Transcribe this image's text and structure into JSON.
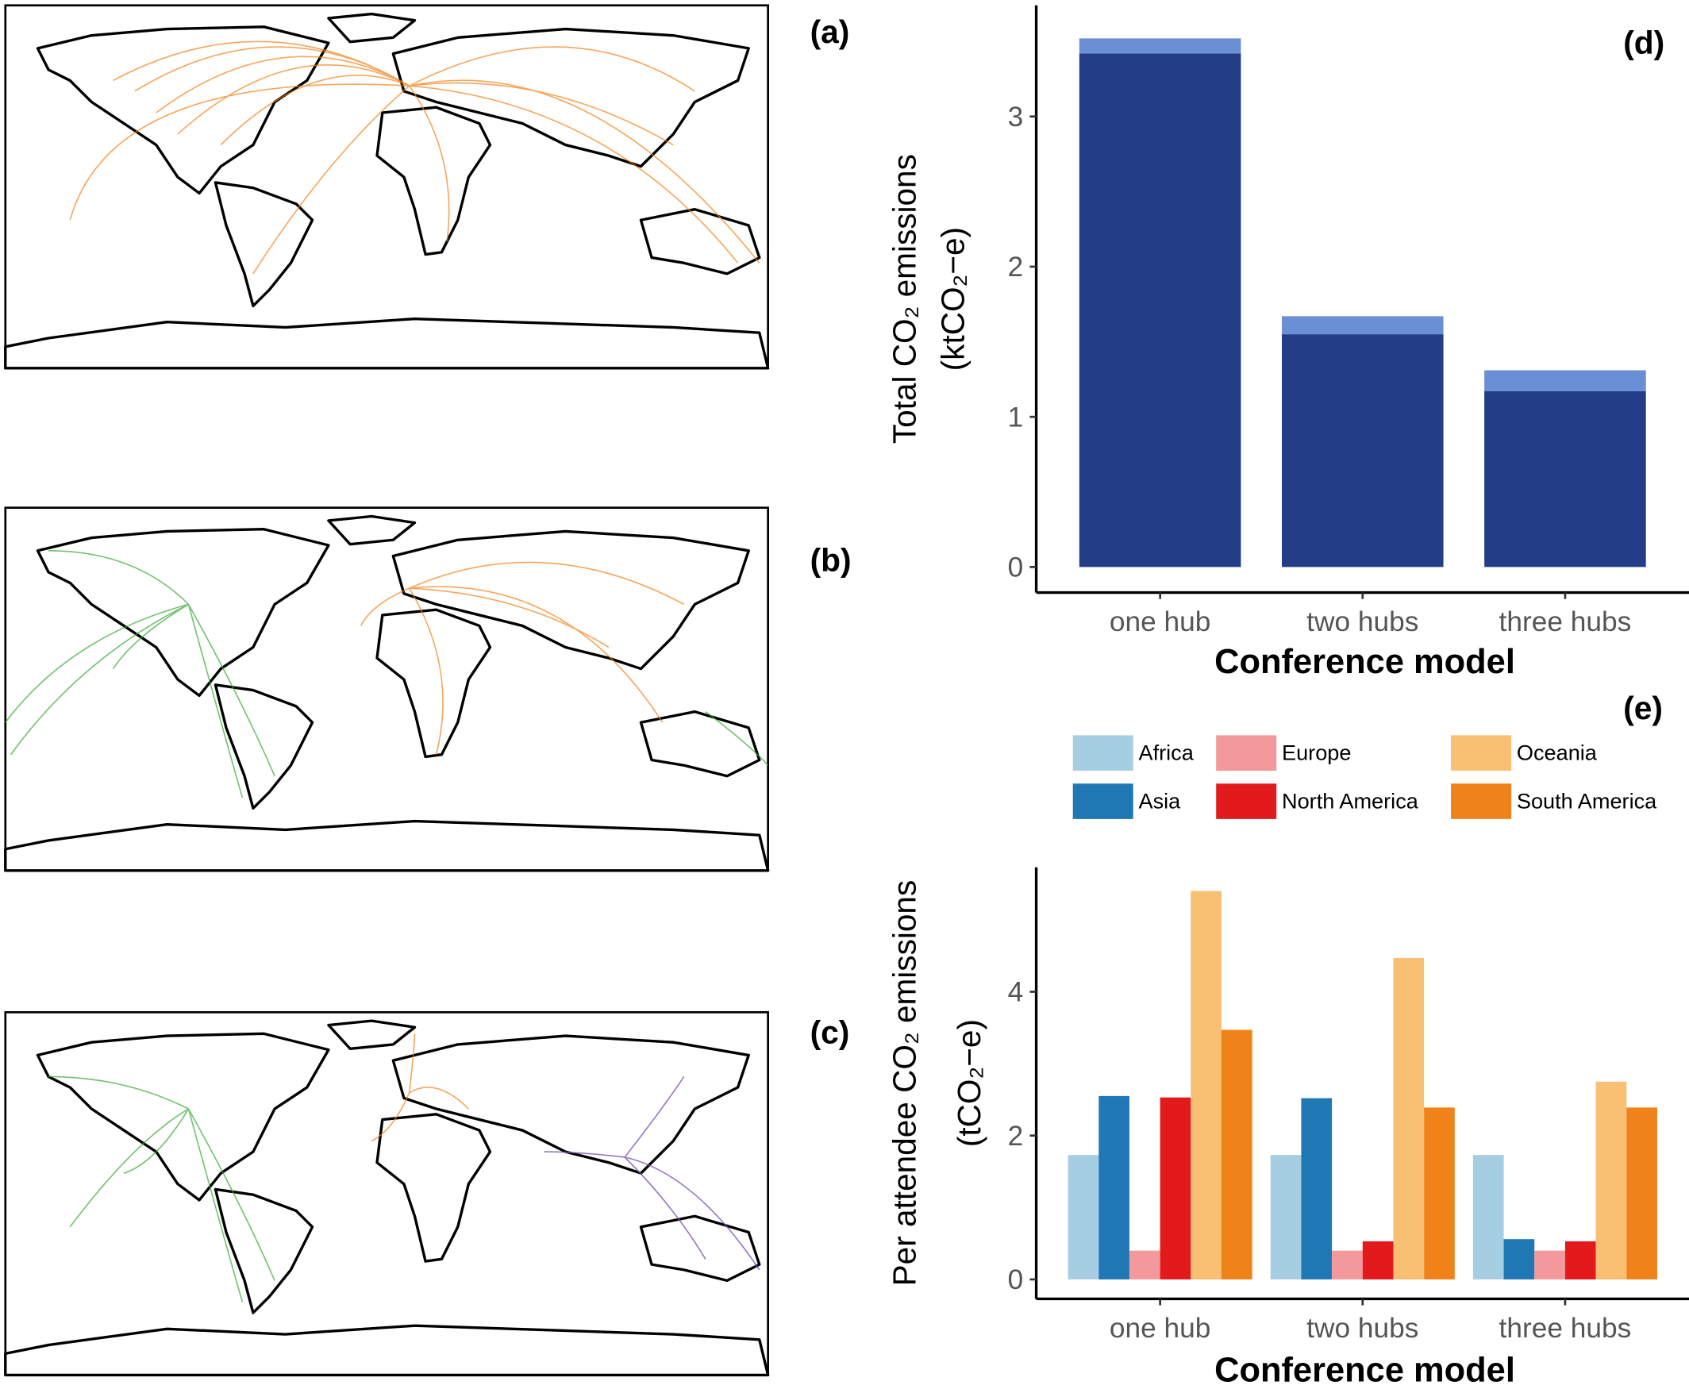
{
  "panels": [
    "(a)",
    "(b)",
    "(c)"
  ],
  "chart_data": [
    {
      "type": "bar",
      "panel": "(d)",
      "stacked": true,
      "y_label": "Total CO₂ emissions",
      "y_unit": "(ktCO₂−e)",
      "x_label": "Conference model",
      "categories": [
        "one hub",
        "two hubs",
        "three hubs"
      ],
      "series": [
        {
          "color": "#233d87",
          "values": [
            3.42,
            1.55,
            1.17
          ]
        },
        {
          "color": "#6b8fd4",
          "values": [
            0.1,
            0.12,
            0.14
          ]
        }
      ],
      "ylim": [
        -0.17,
        3.74
      ],
      "yticks": [
        0,
        1,
        2,
        3
      ]
    },
    {
      "type": "bar",
      "panel": "(e)",
      "stacked": false,
      "legend": "top",
      "y_label": "Per attendee CO₂ emissions",
      "y_unit": "(tCO₂−e)",
      "x_label": "Conference model",
      "categories": [
        "one hub",
        "two hubs",
        "three hubs"
      ],
      "series": [
        {
          "name": "Africa",
          "color": "#a6cee3",
          "values": [
            1.73,
            1.73,
            1.73
          ]
        },
        {
          "name": "Asia",
          "color": "#1f78b4",
          "values": [
            2.55,
            2.52,
            0.56
          ]
        },
        {
          "name": "Europe",
          "color": "#f4999b",
          "values": [
            0.4,
            0.4,
            0.4
          ]
        },
        {
          "name": "North America",
          "color": "#e31a1c",
          "values": [
            2.53,
            0.53,
            0.53
          ]
        },
        {
          "name": "Oceania",
          "color": "#f9bf72",
          "values": [
            5.4,
            4.47,
            2.75
          ]
        },
        {
          "name": "South America",
          "color": "#f0821a",
          "values": [
            3.47,
            2.39,
            2.39
          ]
        }
      ],
      "ylim": [
        -0.27,
        5.73
      ],
      "yticks": [
        0,
        2,
        4
      ]
    }
  ]
}
